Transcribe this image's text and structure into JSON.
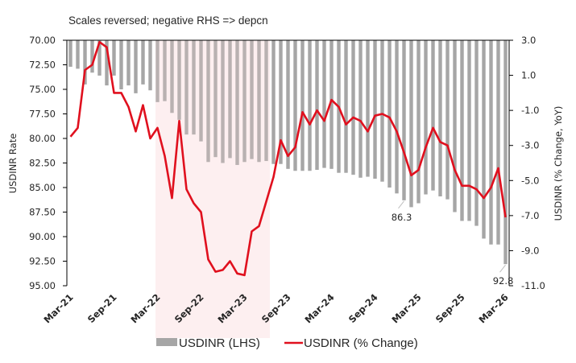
{
  "chart_data": {
    "type": "bar+line",
    "title": "Scales reversed; negative RHS  => depcn",
    "categories": [
      "Mar-21",
      "Apr-21",
      "May-21",
      "Jun-21",
      "Jul-21",
      "Aug-21",
      "Sep-21",
      "Oct-21",
      "Nov-21",
      "Dec-21",
      "Jan-22",
      "Feb-22",
      "Mar-22",
      "Apr-22",
      "May-22",
      "Jun-22",
      "Jul-22",
      "Aug-22",
      "Sep-22",
      "Oct-22",
      "Nov-22",
      "Dec-22",
      "Jan-23",
      "Feb-23",
      "Mar-23",
      "Apr-23",
      "May-23",
      "Jun-23",
      "Jul-23",
      "Aug-23",
      "Sep-23",
      "Oct-23",
      "Nov-23",
      "Dec-23",
      "Jan-24",
      "Feb-24",
      "Mar-24",
      "Apr-24",
      "May-24",
      "Jun-24",
      "Jul-24",
      "Aug-24",
      "Sep-24",
      "Oct-24",
      "Nov-24",
      "Dec-24",
      "Jan-25",
      "Feb-25",
      "Mar-25",
      "Apr-25",
      "May-25",
      "Jun-25",
      "Jul-25",
      "Aug-25",
      "Sep-25",
      "Oct-25",
      "Nov-25",
      "Dec-25",
      "Jan-26",
      "Feb-26",
      "Mar-26"
    ],
    "x_tick_labels": [
      "Mar-21",
      "Sep-21",
      "Mar-22",
      "Sep-22",
      "Mar-23",
      "Sep-23",
      "Mar-24",
      "Sep-24",
      "Mar-25",
      "Sep-25",
      "Mar-26"
    ],
    "series": [
      {
        "name": "USDINR (LHS)",
        "type": "bar",
        "axis": "left",
        "color": "#a6a6a6",
        "values": [
          72.7,
          72.9,
          74.5,
          73.3,
          73.6,
          74.6,
          73.6,
          75.0,
          74.6,
          75.4,
          74.5,
          75.1,
          76.3,
          76.2,
          77.4,
          78.1,
          79.6,
          79.6,
          80.3,
          82.4,
          81.9,
          82.5,
          82.0,
          82.7,
          82.4,
          82.1,
          82.4,
          82.3,
          82.6,
          82.6,
          83.1,
          83.3,
          83.3,
          83.3,
          83.2,
          83.0,
          83.1,
          83.5,
          83.5,
          83.7,
          84.0,
          83.9,
          84.1,
          84.4,
          85.0,
          85.6,
          86.3,
          87.0,
          86.6,
          85.7,
          85.3,
          85.9,
          86.2,
          87.5,
          88.4,
          88.4,
          88.9,
          90.2,
          90.8,
          90.8,
          92.8
        ]
      },
      {
        "name": "USDINR (% Change)",
        "type": "line",
        "axis": "right",
        "color": "#e0101e",
        "values": [
          -2.5,
          -2.0,
          1.3,
          1.6,
          2.9,
          2.6,
          0.0,
          0.0,
          -0.8,
          -2.2,
          -0.7,
          -2.6,
          -2.0,
          -3.6,
          -6.0,
          -1.6,
          -5.5,
          -6.3,
          -6.8,
          -9.5,
          -10.2,
          -10.1,
          -9.6,
          -10.3,
          -10.4,
          -7.9,
          -7.6,
          -6.2,
          -4.8,
          -2.7,
          -3.6,
          -3.1,
          -1.1,
          -1.8,
          -1.0,
          -1.6,
          -0.4,
          -0.8,
          -1.8,
          -1.4,
          -1.6,
          -2.2,
          -1.3,
          -1.2,
          -1.4,
          -2.2,
          -3.4,
          -4.7,
          -4.4,
          -3.1,
          -2.0,
          -2.8,
          -3.0,
          -4.4,
          -5.3,
          -5.3,
          -5.5,
          -6.0,
          -5.4,
          -4.3,
          -7.1
        ]
      }
    ],
    "left_axis": {
      "label": "USDINR Rate",
      "range": [
        70,
        95
      ],
      "reversed": true,
      "ticks": [
        "70.00",
        "72.50",
        "75.00",
        "77.50",
        "80.00",
        "82.50",
        "85.00",
        "87.50",
        "90.00",
        "92.50",
        "95.00"
      ]
    },
    "right_axis": {
      "label": "USDINR (% Change, YoY)",
      "range": [
        3.0,
        -11.0
      ],
      "ticks": [
        "3.0",
        "1.0",
        "-1.0",
        "-3.0",
        "-5.0",
        "-7.0",
        "-9.0",
        "-11.0"
      ]
    },
    "shaded_region": {
      "from": "Mar-22",
      "to": "Jun-23",
      "color": "#fdeff0"
    },
    "annotations": [
      {
        "category": "Jan-25",
        "text": "86.3"
      },
      {
        "category": "Mar-26",
        "text": "92.8"
      }
    ],
    "legend": {
      "position": "bottom",
      "entries": [
        "USDINR (LHS)",
        "USDINR (% Change)"
      ]
    },
    "grid": false
  }
}
